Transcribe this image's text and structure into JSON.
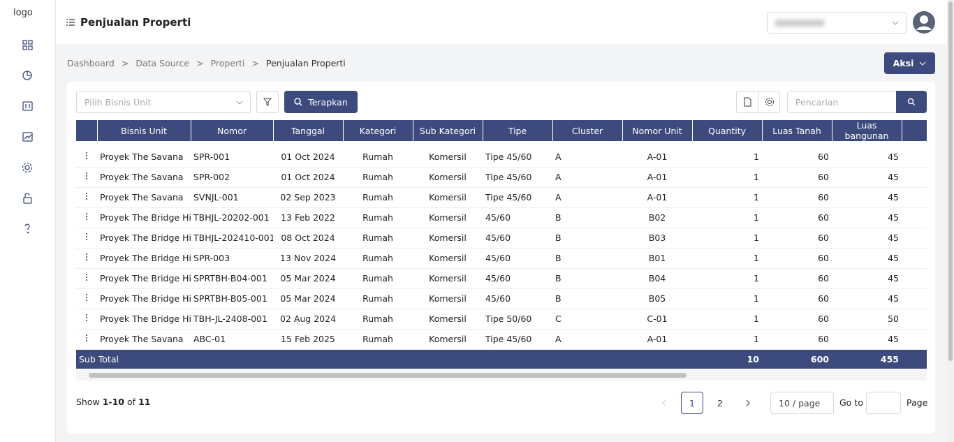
{
  "sidebar": {
    "logo_alt": "logo"
  },
  "header": {
    "title": "Penjualan Properti"
  },
  "breadcrumb": {
    "items": [
      "Dashboard",
      "Data Source",
      "Properti",
      "Penjualan Properti"
    ],
    "separator": ">"
  },
  "actions": {
    "aksi": "Aksi"
  },
  "filters": {
    "bisnis_unit_placeholder": "Pilih Bisnis Unit",
    "apply": "Terapkan",
    "search_placeholder": "Pencarian"
  },
  "table": {
    "columns": [
      "Bisnis Unit",
      "Nomor",
      "Tanggal",
      "Kategori",
      "Sub Kategori",
      "Tipe",
      "Cluster",
      "Nomor Unit",
      "Quantity",
      "Luas Tanah",
      "Luas bangunan"
    ],
    "rows": [
      [
        "Proyek The Savana",
        "SPR-001",
        "01 Oct 2024",
        "Rumah",
        "Komersil",
        "Tipe 45/60",
        "A",
        "A-01",
        1,
        60,
        45
      ],
      [
        "Proyek The Savana",
        "SPR-002",
        "01 Oct 2024",
        "Rumah",
        "Komersil",
        "Tipe 45/60",
        "A",
        "A-01",
        1,
        60,
        45
      ],
      [
        "Proyek The Savana",
        "SVNJL-001",
        "02 Sep 2023",
        "Rumah",
        "Komersil",
        "Tipe 45/60",
        "A",
        "A-01",
        1,
        60,
        45
      ],
      [
        "Proyek The Bridge Hill",
        "TBHJL-20202-001",
        "13 Feb 2022",
        "Rumah",
        "Komersil",
        "45/60",
        "B",
        "B02",
        1,
        60,
        45
      ],
      [
        "Proyek The Bridge Hill",
        "TBHJL-202410-001",
        "08 Oct 2024",
        "Rumah",
        "Komersil",
        "45/60",
        "B",
        "B03",
        1,
        60,
        45
      ],
      [
        "Proyek The Bridge Hill",
        "SPR-003",
        "13 Nov 2024",
        "Rumah",
        "Komersil",
        "45/60",
        "B",
        "B01",
        1,
        60,
        45
      ],
      [
        "Proyek The Bridge Hill",
        "SPRTBH-B04-001",
        "05 Mar 2024",
        "Rumah",
        "Komersil",
        "45/60",
        "B",
        "B04",
        1,
        60,
        45
      ],
      [
        "Proyek The Bridge Hill",
        "SPRTBH-B05-001",
        "05 Mar 2024",
        "Rumah",
        "Komersil",
        "45/60",
        "B",
        "B05",
        1,
        60,
        45
      ],
      [
        "Proyek The Bridge Hill",
        "TBH-JL-2408-001",
        "02 Aug 2024",
        "Rumah",
        "Komersil",
        "Tipe 50/60",
        "C",
        "C-01",
        1,
        60,
        50
      ],
      [
        "Proyek The Savana",
        "ABC-01",
        "15 Feb 2025",
        "Rumah",
        "Komersil",
        "Tipe 45/60",
        "A",
        "A-01",
        1,
        60,
        45
      ]
    ],
    "subtotal": {
      "label": "Sub Total",
      "values": [
        10,
        600,
        455
      ]
    }
  },
  "pagination": {
    "show": "Show",
    "range": "1-10",
    "of": "of",
    "total": 11,
    "pages": [
      1,
      2
    ],
    "page_size": "10 / page",
    "goto": "Go to",
    "page": "Page"
  }
}
